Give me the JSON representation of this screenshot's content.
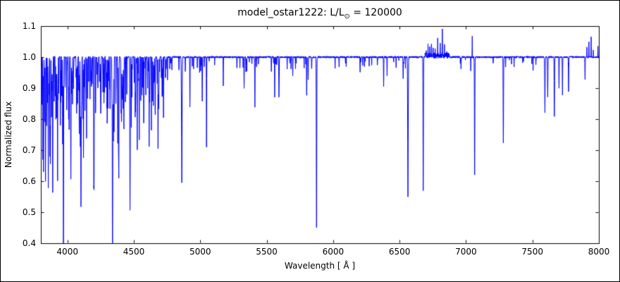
{
  "title": {
    "prefix": "model_ostar1222: L/L",
    "sub": "⊙",
    "suffix": " = 120000"
  },
  "axes": {
    "xlabel": "Wavelength [ Å ]",
    "ylabel": "Normalized flux"
  },
  "chart_data": {
    "type": "line",
    "title": "model_ostar1222: L/L⊙ = 120000",
    "xlabel": "Wavelength [ Å ]",
    "ylabel": "Normalized flux",
    "xlim": [
      3800,
      8000
    ],
    "ylim": [
      0.4,
      1.1
    ],
    "x_ticks": [
      4000,
      4500,
      5000,
      5500,
      6000,
      6500,
      7000,
      7500,
      8000
    ],
    "y_ticks": [
      "0.4",
      "0.5",
      "0.6",
      "0.7",
      "0.8",
      "0.9",
      "1.0",
      "1.1"
    ],
    "grid": false,
    "legend": "none",
    "line_color": "#0000ff",
    "continuum": 1.0,
    "noise_amplitude": 0.003,
    "absorption_lines_format": [
      "wavelength_A",
      "min_flux",
      "width_A"
    ],
    "absorption_lines": [
      [
        3806,
        0.85,
        1.0
      ],
      [
        3815,
        0.72,
        1.0
      ],
      [
        3820,
        0.66,
        1.2
      ],
      [
        3829,
        0.8,
        1.0
      ],
      [
        3835,
        0.6,
        1.4
      ],
      [
        3843,
        0.78,
        1.0
      ],
      [
        3850,
        0.85,
        1.0
      ],
      [
        3856,
        0.74,
        1.0
      ],
      [
        3862,
        0.88,
        1.0
      ],
      [
        3868,
        0.7,
        1.0
      ],
      [
        3872,
        0.76,
        1.0
      ],
      [
        3878,
        0.9,
        1.0
      ],
      [
        3889,
        0.57,
        1.5
      ],
      [
        3900,
        0.86,
        1.0
      ],
      [
        3913,
        0.82,
        1.0
      ],
      [
        3926,
        0.76,
        1.2
      ],
      [
        3935,
        0.88,
        1.0
      ],
      [
        3947,
        0.9,
        1.0
      ],
      [
        3964,
        0.72,
        1.2
      ],
      [
        3970,
        0.53,
        1.6
      ],
      [
        3983,
        0.9,
        1.0
      ],
      [
        3995,
        0.83,
        1.2
      ],
      [
        4009,
        0.8,
        1.2
      ],
      [
        4026,
        0.62,
        1.5
      ],
      [
        4035,
        0.92,
        1.0
      ],
      [
        4045,
        0.9,
        1.0
      ],
      [
        4069,
        0.82,
        1.2
      ],
      [
        4076,
        0.85,
        1.0
      ],
      [
        4089,
        0.75,
        1.2
      ],
      [
        4097,
        0.72,
        1.2
      ],
      [
        4102,
        0.52,
        1.8
      ],
      [
        4116,
        0.8,
        1.2
      ],
      [
        4121,
        0.78,
        1.0
      ],
      [
        4132,
        0.88,
        1.0
      ],
      [
        4144,
        0.74,
        1.2
      ],
      [
        4153,
        0.9,
        1.0
      ],
      [
        4169,
        0.92,
        1.0
      ],
      [
        4186,
        0.92,
        1.0
      ],
      [
        4200,
        0.82,
        1.3
      ],
      [
        4213,
        0.94,
        1.0
      ],
      [
        4227,
        0.93,
        1.0
      ],
      [
        4242,
        0.92,
        1.0
      ],
      [
        4253,
        0.94,
        1.0
      ],
      [
        4267,
        0.9,
        1.0
      ],
      [
        4276,
        0.92,
        1.0
      ],
      [
        4294,
        0.93,
        1.0
      ],
      [
        4310,
        0.92,
        1.0
      ],
      [
        4317,
        0.9,
        1.0
      ],
      [
        4340,
        0.52,
        1.8
      ],
      [
        4351,
        0.88,
        1.0
      ],
      [
        4367,
        0.91,
        1.0
      ],
      [
        4379,
        0.85,
        1.0
      ],
      [
        4387,
        0.73,
        1.3
      ],
      [
        4415,
        0.87,
        1.2
      ],
      [
        4437,
        0.92,
        1.0
      ],
      [
        4447,
        0.88,
        1.0
      ],
      [
        4471,
        0.51,
        1.6
      ],
      [
        4481,
        0.84,
        1.0
      ],
      [
        4510,
        0.89,
        1.0
      ],
      [
        4514,
        0.91,
        1.0
      ],
      [
        4541,
        0.81,
        1.3
      ],
      [
        4552,
        0.86,
        1.2
      ],
      [
        4568,
        0.9,
        1.0
      ],
      [
        4575,
        0.92,
        1.0
      ],
      [
        4590,
        0.88,
        1.0
      ],
      [
        4604,
        0.9,
        1.0
      ],
      [
        4620,
        0.92,
        1.0
      ],
      [
        4631,
        0.88,
        1.0
      ],
      [
        4640,
        0.86,
        1.2
      ],
      [
        4647,
        0.89,
        1.0
      ],
      [
        4654,
        0.92,
        1.0
      ],
      [
        4686,
        0.85,
        1.4
      ],
      [
        4713,
        0.87,
        1.2
      ],
      [
        4861,
        0.62,
        1.8
      ],
      [
        4922,
        0.84,
        1.3
      ],
      [
        5015,
        0.86,
        1.2
      ],
      [
        5047,
        0.71,
        1.2
      ],
      [
        5173,
        0.93,
        1.0
      ],
      [
        5330,
        0.9,
        1.2
      ],
      [
        5411,
        0.84,
        1.4
      ],
      [
        5560,
        0.91,
        1.2
      ],
      [
        5592,
        0.87,
        1.3
      ],
      [
        5696,
        0.94,
        1.2
      ],
      [
        5801,
        0.92,
        1.3
      ],
      [
        5812,
        0.93,
        1.2
      ],
      [
        5875,
        0.45,
        1.7
      ],
      [
        6203,
        0.95,
        1.2
      ],
      [
        6380,
        0.92,
        1.2
      ],
      [
        6406,
        0.94,
        1.0
      ],
      [
        6527,
        0.93,
        1.2
      ],
      [
        6563,
        0.55,
        2.0
      ],
      [
        6678,
        0.57,
        1.6
      ],
      [
        7065,
        0.62,
        1.6
      ],
      [
        7281,
        0.72,
        1.5
      ],
      [
        7594,
        0.82,
        1.6
      ],
      [
        7615,
        0.87,
        1.4
      ],
      [
        7665,
        0.81,
        1.5
      ],
      [
        7700,
        0.9,
        1.3
      ],
      [
        7726,
        0.88,
        1.3
      ],
      [
        7772,
        0.89,
        1.4
      ],
      [
        7896,
        0.93,
        1.2
      ]
    ],
    "emission_lines_format": [
      "wavelength_A",
      "peak_flux",
      "width_A"
    ],
    "emission_lines": [
      [
        6700,
        1.02,
        0.8
      ],
      [
        6714,
        1.03,
        0.8
      ],
      [
        6727,
        1.02,
        0.8
      ],
      [
        6740,
        1.04,
        0.9
      ],
      [
        6753,
        1.03,
        0.8
      ],
      [
        6768,
        1.03,
        0.8
      ],
      [
        6787,
        1.05,
        0.9
      ],
      [
        6806,
        1.04,
        0.9
      ],
      [
        6822,
        1.08,
        1.0
      ],
      [
        6838,
        1.03,
        0.8
      ],
      [
        6855,
        1.02,
        0.8
      ],
      [
        7047,
        1.07,
        0.9
      ],
      [
        7910,
        1.03,
        0.9
      ],
      [
        7925,
        1.05,
        0.9
      ],
      [
        7942,
        1.065,
        0.9
      ],
      [
        7958,
        1.02,
        0.8
      ],
      [
        7993,
        1.035,
        0.9
      ]
    ],
    "weak_line_forest": [
      {
        "range": [
          3795,
          4760
        ],
        "count": 150,
        "depth_range": [
          0.02,
          0.18
        ],
        "width_range": [
          0.6,
          1.4
        ],
        "seed": 11
      },
      {
        "range": [
          4760,
          5900
        ],
        "count": 45,
        "depth_range": [
          0.015,
          0.05
        ],
        "width_range": [
          0.6,
          1.3
        ],
        "seed": 23
      },
      {
        "range": [
          5900,
          6550
        ],
        "count": 18,
        "depth_range": [
          0.01,
          0.04
        ],
        "width_range": [
          0.6,
          1.2
        ],
        "seed": 37
      },
      {
        "range": [
          6900,
          7550
        ],
        "count": 14,
        "depth_range": [
          0.01,
          0.05
        ],
        "width_range": [
          0.6,
          1.2
        ],
        "seed": 51
      }
    ]
  }
}
